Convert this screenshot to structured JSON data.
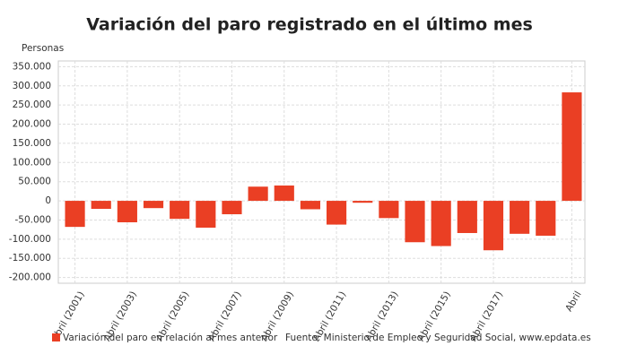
{
  "chart_data": {
    "type": "bar",
    "title": "Variación del paro registrado en el último mes",
    "y_axis_label": "Personas",
    "categories": [
      "Abril (2001)",
      null,
      "Abril (2003)",
      null,
      "Abril (2005)",
      null,
      "Abril (2007)",
      null,
      "Abril (2009)",
      null,
      "Abril (2011)",
      null,
      "Abril (2013)",
      null,
      "Abril (2015)",
      null,
      "Abril (2017)",
      null,
      null,
      "Abril"
    ],
    "series": [
      {
        "name": "Variación del paro en relación al mes anterior",
        "color": "#ea3f24",
        "values": [
          -68000,
          -21000,
          -56000,
          -19000,
          -47000,
          -70000,
          -35000,
          37000,
          40000,
          -22000,
          -62000,
          -5000,
          -45000,
          -108000,
          -118000,
          -84000,
          -129000,
          -86000,
          -91000,
          283000
        ]
      }
    ],
    "ylim": [
      -215000,
      365000
    ],
    "yticks": [
      {
        "value": -200000,
        "label": "-200.000"
      },
      {
        "value": -150000,
        "label": "-150.000"
      },
      {
        "value": -100000,
        "label": "-100.000"
      },
      {
        "value": -50000,
        "label": "-50.000"
      },
      0,
      {
        "value": 50000,
        "label": "50.000"
      },
      {
        "value": 100000,
        "label": "100.000"
      },
      {
        "value": 150000,
        "label": "150.000"
      },
      {
        "value": 200000,
        "label": "200.000"
      },
      {
        "value": 250000,
        "label": "250.000"
      },
      {
        "value": 300000,
        "label": "300.000"
      },
      {
        "value": 350000,
        "label": "350.000"
      }
    ],
    "grid": true,
    "source": "Fuente: Ministerio de Empleo y Seguridad Social, www.epdata.es"
  }
}
